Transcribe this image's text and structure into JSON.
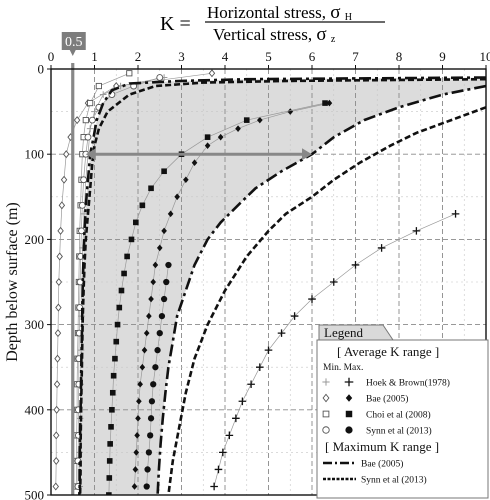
{
  "chart_data": {
    "type": "line",
    "title": {
      "prefix": "K =",
      "numerator": "Horizontal stress,",
      "numerator_symbol": "σ",
      "numerator_sub": "H",
      "denominator": "Vertical stress,",
      "denominator_symbol": "σ",
      "denominator_sub": "z"
    },
    "ylabel": "Depth below surface (m)",
    "x_axis": {
      "position": "top",
      "range": [
        0,
        10
      ],
      "ticks": [
        "0",
        "1",
        "2",
        "3",
        "4",
        "5",
        "6",
        "7",
        "8",
        "9",
        "10"
      ]
    },
    "y_axis": {
      "range": [
        0,
        500
      ],
      "inverted": true,
      "ticks": [
        "0",
        "100",
        "200",
        "300",
        "400",
        "500"
      ]
    },
    "grid": true,
    "annotations": {
      "reference_k": 0.5,
      "reference_label": "0.5",
      "arrow_depth": 100,
      "arrow_from_k": 0.8,
      "arrow_to_k": 6.0
    },
    "shaded_region": "between Bae (2005) maximum K range bounds",
    "legend": {
      "title": "Legend",
      "placement": "bottom-right",
      "average_header": "[ Average K range ]",
      "minmax_label": "Min. Max.",
      "maximum_header": "[ Maximum K range ]",
      "average_entries": [
        {
          "name": "Hoek & Brown(1978)",
          "min_marker": "+",
          "max_marker": "cross"
        },
        {
          "name": "Bae (2005)",
          "min_marker": "diamond-open",
          "max_marker": "diamond-filled"
        },
        {
          "name": "Choi et al (2008)",
          "min_marker": "square-open",
          "max_marker": "square-filled"
        },
        {
          "name": "Synn et al (2013)",
          "min_marker": "circle-open",
          "max_marker": "circle-filled"
        }
      ],
      "maximum_entries": [
        {
          "name": "Bae (2005)",
          "style": "dash-dot"
        },
        {
          "name": "Synn et al (2013)",
          "style": "dotted"
        }
      ]
    },
    "series": [
      {
        "name": "Hoek & Brown(1978)",
        "bound": "min",
        "marker": "plus",
        "points": [
          [
            2.6,
            10
          ],
          [
            1.6,
            20
          ],
          [
            1.2,
            30
          ],
          [
            1.0,
            50
          ],
          [
            0.9,
            70
          ],
          [
            0.85,
            100
          ],
          [
            0.8,
            130
          ],
          [
            0.76,
            170
          ],
          [
            0.73,
            210
          ],
          [
            0.71,
            250
          ],
          [
            0.7,
            290
          ],
          [
            0.69,
            330
          ],
          [
            0.68,
            370
          ],
          [
            0.67,
            410
          ],
          [
            0.66,
            450
          ],
          [
            0.66,
            490
          ]
        ]
      },
      {
        "name": "Hoek & Brown(1978)",
        "bound": "max",
        "marker": "cross",
        "points": [
          [
            9.3,
            170
          ],
          [
            8.4,
            190
          ],
          [
            7.6,
            210
          ],
          [
            7.0,
            230
          ],
          [
            6.5,
            250
          ],
          [
            6.0,
            270
          ],
          [
            5.6,
            290
          ],
          [
            5.3,
            310
          ],
          [
            5.0,
            330
          ],
          [
            4.8,
            350
          ],
          [
            4.6,
            370
          ],
          [
            4.4,
            390
          ],
          [
            4.25,
            410
          ],
          [
            4.1,
            430
          ],
          [
            3.95,
            450
          ],
          [
            3.85,
            470
          ],
          [
            3.75,
            490
          ]
        ]
      },
      {
        "name": "Bae (2005)",
        "bound": "min",
        "marker": "diamond-open",
        "points": [
          [
            3.7,
            5
          ],
          [
            1.5,
            20
          ],
          [
            0.85,
            40
          ],
          [
            0.6,
            60
          ],
          [
            0.45,
            80
          ],
          [
            0.35,
            100
          ],
          [
            0.3,
            130
          ],
          [
            0.25,
            160
          ],
          [
            0.22,
            190
          ],
          [
            0.2,
            220
          ],
          [
            0.18,
            250
          ],
          [
            0.17,
            280
          ],
          [
            0.16,
            310
          ],
          [
            0.15,
            340
          ],
          [
            0.14,
            370
          ],
          [
            0.13,
            400
          ],
          [
            0.12,
            430
          ],
          [
            0.12,
            460
          ],
          [
            0.11,
            490
          ]
        ]
      },
      {
        "name": "Bae (2005)",
        "bound": "max",
        "marker": "diamond-filled",
        "points": [
          [
            6.4,
            40
          ],
          [
            5.5,
            50
          ],
          [
            4.8,
            60
          ],
          [
            4.3,
            70
          ],
          [
            3.9,
            80
          ],
          [
            3.6,
            90
          ],
          [
            3.3,
            110
          ],
          [
            3.1,
            130
          ],
          [
            2.9,
            150
          ],
          [
            2.75,
            170
          ],
          [
            2.6,
            190
          ],
          [
            2.5,
            210
          ],
          [
            2.4,
            230
          ],
          [
            2.35,
            250
          ],
          [
            2.3,
            270
          ],
          [
            2.25,
            290
          ],
          [
            2.2,
            310
          ],
          [
            2.15,
            330
          ],
          [
            2.1,
            350
          ],
          [
            2.05,
            370
          ],
          [
            2.02,
            390
          ],
          [
            2.0,
            410
          ],
          [
            1.98,
            430
          ],
          [
            1.96,
            450
          ],
          [
            1.94,
            470
          ],
          [
            1.92,
            490
          ]
        ]
      },
      {
        "name": "Choi et al (2008)",
        "bound": "min",
        "marker": "square-open",
        "points": [
          [
            1.8,
            5
          ],
          [
            1.1,
            20
          ],
          [
            0.9,
            40
          ],
          [
            0.8,
            60
          ],
          [
            0.75,
            80
          ],
          [
            0.72,
            100
          ],
          [
            0.7,
            130
          ],
          [
            0.68,
            160
          ],
          [
            0.66,
            190
          ],
          [
            0.65,
            220
          ],
          [
            0.64,
            250
          ],
          [
            0.63,
            280
          ],
          [
            0.62,
            310
          ],
          [
            0.61,
            340
          ],
          [
            0.6,
            370
          ],
          [
            0.6,
            400
          ],
          [
            0.59,
            430
          ],
          [
            0.59,
            460
          ],
          [
            0.58,
            490
          ]
        ]
      },
      {
        "name": "Choi et al (2008)",
        "bound": "max",
        "marker": "square-filled",
        "points": [
          [
            6.3,
            40
          ],
          [
            4.5,
            60
          ],
          [
            3.6,
            80
          ],
          [
            3.0,
            100
          ],
          [
            2.6,
            120
          ],
          [
            2.3,
            140
          ],
          [
            2.1,
            160
          ],
          [
            1.95,
            180
          ],
          [
            1.85,
            200
          ],
          [
            1.75,
            220
          ],
          [
            1.68,
            240
          ],
          [
            1.62,
            260
          ],
          [
            1.57,
            280
          ],
          [
            1.53,
            300
          ],
          [
            1.5,
            320
          ],
          [
            1.47,
            340
          ],
          [
            1.44,
            360
          ],
          [
            1.42,
            380
          ],
          [
            1.4,
            400
          ],
          [
            1.38,
            420
          ],
          [
            1.36,
            440
          ],
          [
            1.35,
            460
          ],
          [
            1.34,
            480
          ],
          [
            1.33,
            500
          ]
        ]
      },
      {
        "name": "Synn et al (2013)",
        "bound": "min",
        "marker": "circle-open",
        "points": [
          [
            2.5,
            10
          ],
          [
            1.9,
            20
          ],
          [
            1.4,
            30
          ],
          [
            1.1,
            45
          ],
          [
            0.95,
            60
          ],
          [
            0.85,
            80
          ],
          [
            0.8,
            100
          ],
          [
            0.75,
            130
          ],
          [
            0.72,
            160
          ],
          [
            0.7,
            190
          ],
          [
            0.68,
            220
          ],
          [
            0.67,
            250
          ],
          [
            0.66,
            280
          ],
          [
            0.65,
            310
          ],
          [
            0.64,
            340
          ],
          [
            0.64,
            370
          ],
          [
            0.63,
            400
          ],
          [
            0.63,
            430
          ],
          [
            0.62,
            460
          ],
          [
            0.62,
            490
          ]
        ]
      },
      {
        "name": "Synn et al (2013)",
        "bound": "max",
        "marker": "circle-filled",
        "points": [
          [
            2.7,
            230
          ],
          [
            2.65,
            250
          ],
          [
            2.6,
            270
          ],
          [
            2.55,
            290
          ],
          [
            2.5,
            310
          ],
          [
            2.45,
            330
          ],
          [
            2.4,
            350
          ],
          [
            2.35,
            370
          ],
          [
            2.32,
            390
          ],
          [
            2.3,
            410
          ],
          [
            2.28,
            430
          ],
          [
            2.25,
            450
          ],
          [
            2.22,
            470
          ],
          [
            2.2,
            490
          ]
        ]
      },
      {
        "name": "Bae (2005)",
        "bound": "range-lower",
        "style": "dash-dot",
        "points": [
          [
            10,
            10
          ],
          [
            4.5,
            12
          ],
          [
            3.0,
            14
          ],
          [
            1.8,
            17
          ],
          [
            1.4,
            25
          ],
          [
            1.2,
            40
          ],
          [
            1.05,
            60
          ],
          [
            0.98,
            80
          ],
          [
            0.9,
            100
          ],
          [
            0.85,
            130
          ],
          [
            0.8,
            160
          ],
          [
            0.77,
            190
          ],
          [
            0.75,
            220
          ],
          [
            0.73,
            250
          ],
          [
            0.72,
            280
          ],
          [
            0.71,
            310
          ],
          [
            0.7,
            340
          ],
          [
            0.69,
            370
          ],
          [
            0.68,
            400
          ],
          [
            0.67,
            430
          ],
          [
            0.66,
            460
          ],
          [
            0.66,
            490
          ],
          [
            0.65,
            500
          ]
        ]
      },
      {
        "name": "Bae (2005)",
        "bound": "range-upper",
        "style": "dash-dot",
        "points": [
          [
            10,
            20
          ],
          [
            9.0,
            30
          ],
          [
            8.0,
            45
          ],
          [
            7.2,
            60
          ],
          [
            6.5,
            80
          ],
          [
            6.0,
            100
          ],
          [
            5.3,
            120
          ],
          [
            4.7,
            140
          ],
          [
            4.3,
            160
          ],
          [
            3.9,
            180
          ],
          [
            3.6,
            200
          ],
          [
            3.3,
            230
          ],
          [
            3.1,
            260
          ],
          [
            2.9,
            290
          ],
          [
            2.8,
            320
          ],
          [
            2.7,
            350
          ],
          [
            2.63,
            380
          ],
          [
            2.57,
            410
          ],
          [
            2.52,
            440
          ],
          [
            2.48,
            470
          ],
          [
            2.45,
            500
          ]
        ]
      },
      {
        "name": "Synn et al (2013)",
        "bound": "range-lower",
        "style": "dotted",
        "points": [
          [
            10,
            12
          ],
          [
            5.5,
            14
          ],
          [
            3.5,
            16
          ],
          [
            2.4,
            20
          ],
          [
            1.8,
            30
          ],
          [
            1.3,
            50
          ],
          [
            1.1,
            70
          ],
          [
            1.0,
            90
          ],
          [
            0.95,
            110
          ],
          [
            0.9,
            140
          ],
          [
            0.85,
            170
          ],
          [
            0.8,
            200
          ],
          [
            0.77,
            230
          ],
          [
            0.75,
            260
          ],
          [
            0.73,
            290
          ],
          [
            0.72,
            320
          ],
          [
            0.71,
            350
          ],
          [
            0.7,
            380
          ],
          [
            0.69,
            410
          ],
          [
            0.68,
            440
          ],
          [
            0.68,
            470
          ],
          [
            0.67,
            500
          ]
        ]
      },
      {
        "name": "Synn et al (2013)",
        "bound": "range-upper",
        "style": "dotted",
        "points": [
          [
            10,
            45
          ],
          [
            9.2,
            60
          ],
          [
            8.4,
            75
          ],
          [
            7.8,
            90
          ],
          [
            7.1,
            110
          ],
          [
            6.5,
            130
          ],
          [
            6.0,
            150
          ],
          [
            5.4,
            170
          ],
          [
            5.0,
            190
          ],
          [
            4.5,
            220
          ],
          [
            4.0,
            260
          ],
          [
            3.6,
            300
          ],
          [
            3.3,
            340
          ],
          [
            3.1,
            380
          ],
          [
            2.95,
            420
          ],
          [
            2.8,
            460
          ],
          [
            2.7,
            500
          ]
        ]
      }
    ]
  }
}
